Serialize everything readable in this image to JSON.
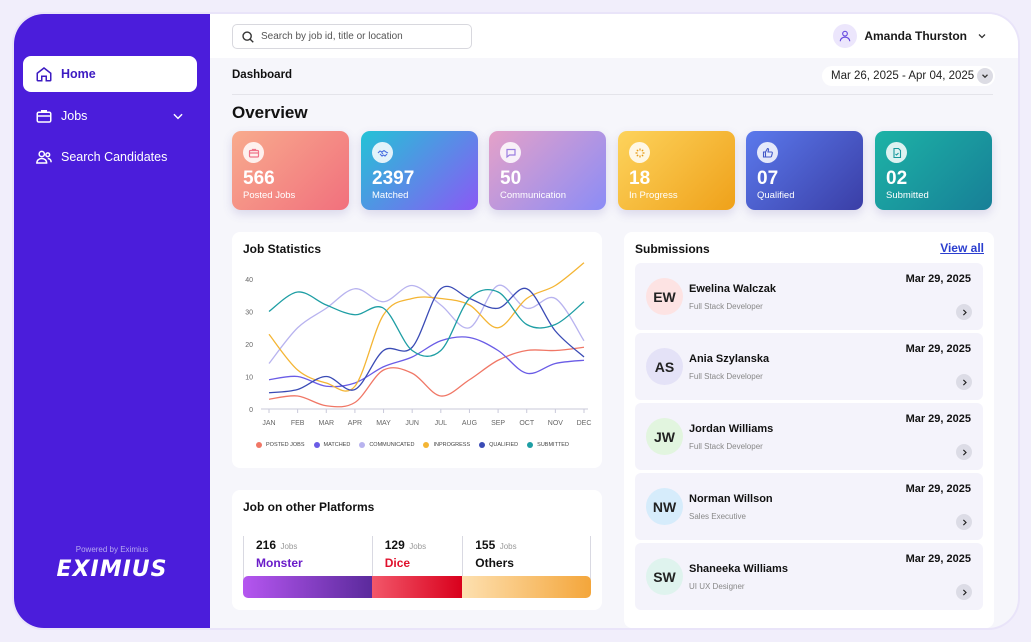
{
  "sidebar": {
    "items": [
      {
        "label": "Home",
        "icon": "home-icon"
      },
      {
        "label": "Jobs",
        "icon": "briefcase-icon"
      },
      {
        "label": "Search Candidates",
        "icon": "users-icon"
      }
    ],
    "powered_by": "Powered by Eximius",
    "logo": "EXIMIUS"
  },
  "header": {
    "search_placeholder": "Search by job id, title or location",
    "user_name": "Amanda Thurston"
  },
  "breadcrumb": "Dashboard",
  "date_range": "Mar 26, 2025 - Apr 04, 2025",
  "overview_title": "Overview",
  "stats": [
    {
      "value": "566",
      "label": "Posted Jobs",
      "icon": "briefcase-icon",
      "gradient": [
        "#f8ab8d",
        "#f1707d"
      ],
      "icon_color": "#f0738a"
    },
    {
      "value": "2397",
      "label": "Matched",
      "icon": "handshake-icon",
      "gradient": [
        "#23c3d6",
        "#8a59f5"
      ],
      "icon_color": "#4a6fe0"
    },
    {
      "value": "50",
      "label": "Communication",
      "icon": "chat-icon",
      "gradient": [
        "#e5a1c8",
        "#8b8cf6"
      ],
      "icon_color": "#9a7de0"
    },
    {
      "value": "18",
      "label": "In Progress",
      "icon": "loader-icon",
      "gradient": [
        "#fdd35c",
        "#efa11a"
      ],
      "icon_color": "#e59a14"
    },
    {
      "value": "07",
      "label": "Qualified",
      "icon": "thumbs-up-icon",
      "gradient": [
        "#5b79ec",
        "#3a3ea6"
      ],
      "icon_color": "#4258c8"
    },
    {
      "value": "02",
      "label": "Submitted",
      "icon": "file-check-icon",
      "gradient": [
        "#1db3a6",
        "#177f97"
      ],
      "icon_color": "#16979c"
    }
  ],
  "job_statistics": {
    "title": "Job Statistics"
  },
  "chart_data": {
    "type": "line",
    "title": "Job Statistics",
    "categories": [
      "JAN",
      "FEB",
      "MAR",
      "APR",
      "MAY",
      "JUN",
      "JUL",
      "AUG",
      "SEP",
      "OCT",
      "NOV",
      "DEC"
    ],
    "ylim": [
      0,
      40
    ],
    "yticks": [
      0,
      10,
      20,
      30,
      40
    ],
    "grid": false,
    "legend_position": "bottom",
    "series": [
      {
        "name": "POSTED JOBS",
        "color": "#f07766",
        "values": [
          3,
          4,
          1,
          2,
          12,
          11,
          4,
          9,
          15,
          18,
          18,
          19
        ]
      },
      {
        "name": "MATCHED",
        "color": "#6a5ce6",
        "values": [
          9,
          10,
          7,
          8,
          13,
          16,
          21,
          22,
          18,
          11,
          14,
          15
        ]
      },
      {
        "name": "COMMUNICATED",
        "color": "#b8b3ef",
        "values": [
          14,
          25,
          31,
          37,
          33,
          38,
          32,
          25,
          38,
          31,
          34,
          21
        ]
      },
      {
        "name": "INPROGRESS",
        "color": "#f4b534",
        "values": [
          23,
          12,
          8,
          7,
          29,
          34,
          34,
          32,
          25,
          34,
          38,
          45
        ]
      },
      {
        "name": "QUALIFIED",
        "color": "#3a4bb5",
        "values": [
          5,
          6,
          10,
          6,
          18,
          19,
          37,
          34,
          31,
          37,
          24,
          16
        ]
      },
      {
        "name": "SUBMITTED",
        "color": "#1e9ea4",
        "values": [
          30,
          36,
          32,
          29,
          31,
          18,
          18,
          34,
          36,
          26,
          26,
          33
        ]
      }
    ]
  },
  "platforms": {
    "title": "Job on other Platforms",
    "items": [
      {
        "count": "216",
        "unit": "Jobs",
        "name": "Monster",
        "color": "#6a1cc9",
        "share": 0.37
      },
      {
        "count": "129",
        "unit": "Jobs",
        "name": "Dice",
        "color": "#e0102c",
        "share": 0.26
      },
      {
        "count": "155",
        "unit": "Jobs",
        "name": "Others",
        "color": "#111111",
        "share": 0.37
      }
    ]
  },
  "submissions": {
    "title": "Submissions",
    "view_all": "View all",
    "items": [
      {
        "initials": "EW",
        "name": "Ewelina Walczak",
        "role": "Full Stack Developer",
        "date": "Mar 29, 2025",
        "avatar_color": "#fde3e3"
      },
      {
        "initials": "AS",
        "name": "Ania Szylanska",
        "role": "Full Stack Developer",
        "date": "Mar 29, 2025",
        "avatar_color": "#e4e2f7"
      },
      {
        "initials": "JW",
        "name": "Jordan Williams",
        "role": "Full Stack Developer",
        "date": "Mar 29, 2025",
        "avatar_color": "#e2f5df"
      },
      {
        "initials": "NW",
        "name": "Norman Willson",
        "role": "Sales Executive",
        "date": "Mar 29, 2025",
        "avatar_color": "#d6ecfb"
      },
      {
        "initials": "SW",
        "name": "Shaneeka Williams",
        "role": "UI UX Designer",
        "date": "Mar 29, 2025",
        "avatar_color": "#dff3ee"
      }
    ]
  }
}
